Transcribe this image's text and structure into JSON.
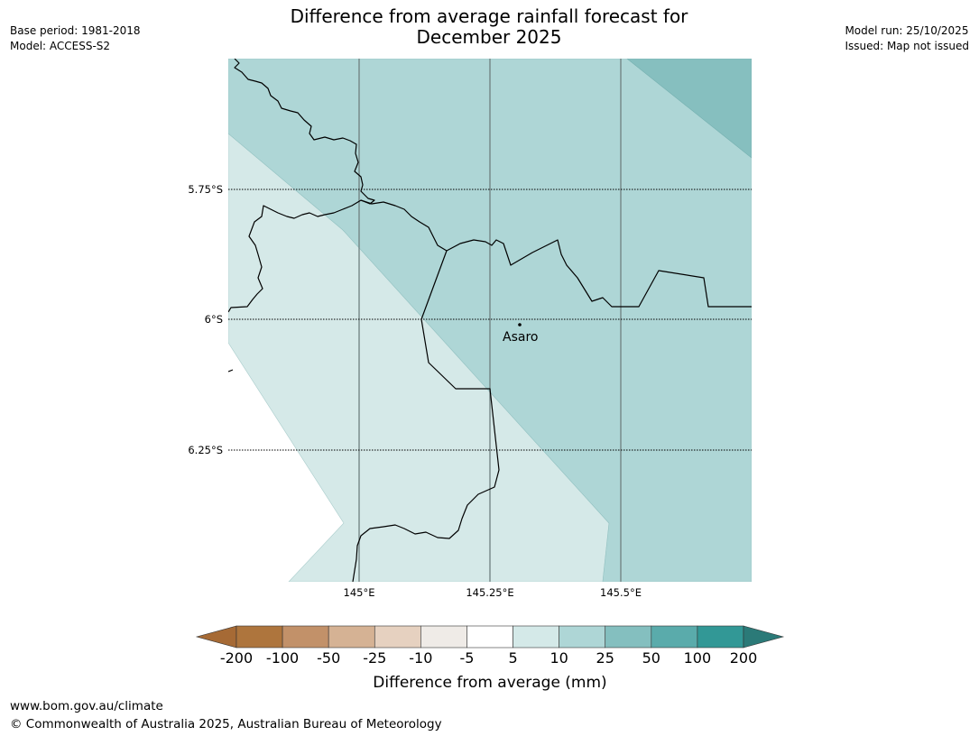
{
  "title_line1": "Difference from average rainfall forecast for",
  "title_line2": "December 2025",
  "meta_left": [
    "Base period: 1981-2018",
    "Model: ACCESS-S2"
  ],
  "meta_right": [
    "Model run: 25/10/2025",
    "Issued: Map not issued"
  ],
  "map": {
    "lat_labels": [
      "5.75°S",
      "6°S",
      "6.25°S"
    ],
    "lon_labels": [
      "145°E",
      "145.25°E",
      "145.5°E"
    ],
    "place": {
      "name": "Asaro"
    }
  },
  "colorbar": {
    "ticks": [
      "-200",
      "-100",
      "-50",
      "-25",
      "-10",
      "-5",
      "5",
      "10",
      "25",
      "50",
      "100",
      "200"
    ],
    "colors": [
      "#a66a35",
      "#ae753d",
      "#c29169",
      "#d5b294",
      "#e6d1c0",
      "#efebe7",
      "#ffffff",
      "#d4e9e8",
      "#aed6d6",
      "#84bfbf",
      "#5aabab",
      "#329896",
      "#2b7a78"
    ],
    "title": "Difference from average (mm)"
  },
  "footer": {
    "url": "www.bom.gov.au/climate",
    "copyright": "© Commonwealth of Australia 2025, Australian Bureau of Meteorology"
  }
}
